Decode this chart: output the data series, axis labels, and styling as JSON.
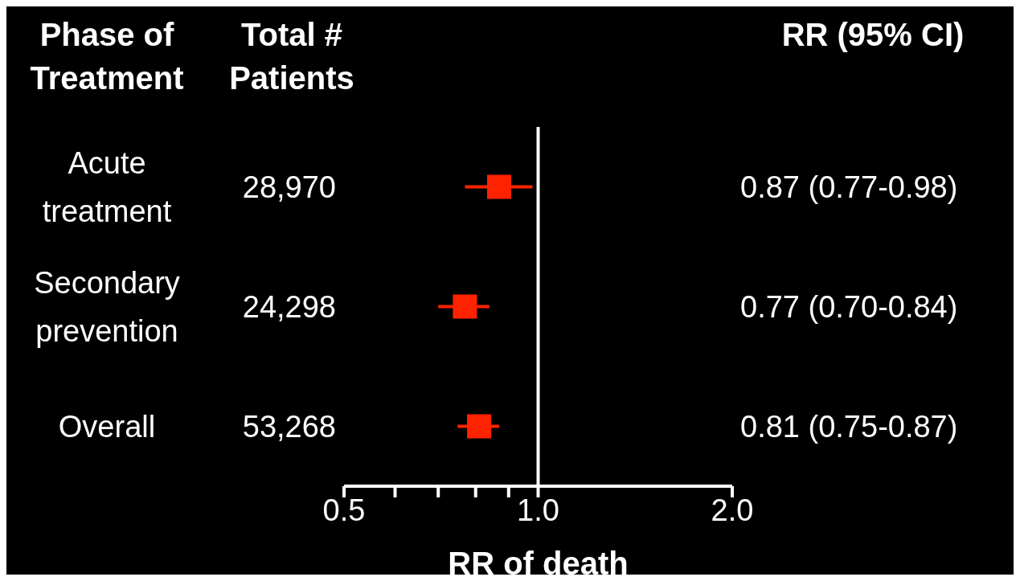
{
  "chart_data": {
    "type": "scatter",
    "orientation": "horizontal",
    "ylabel": "Phase of Treatment",
    "xlabel": "RR of death",
    "categories": [
      "Acute treatment",
      "Secondary prevention",
      "Overall"
    ],
    "series": [
      {
        "color": "#ff2200",
        "values": [
          0.87,
          0.77,
          0.81
        ],
        "errors": [
          [
            0.77,
            0.98
          ],
          [
            0.7,
            0.84
          ],
          [
            0.75,
            0.87
          ]
        ],
        "value_labels": [
          "0.87 (0.77-0.98)",
          "0.77 (0.70-0.84)",
          "0.81 (0.75-0.87)"
        ]
      }
    ],
    "annotations": [
      "Total # Patients",
      "RR (95% CI)",
      "28,970",
      "24,298",
      "53,268"
    ],
    "xlim": [
      0.5,
      2
    ],
    "xticks": [
      {
        "value": 0.5,
        "label": "0.5"
      },
      {
        "value": 0.6,
        "label": null
      },
      {
        "value": 0.7,
        "label": null
      },
      {
        "value": 0.8,
        "label": null
      },
      {
        "value": 0.9,
        "label": null
      },
      {
        "value": 1,
        "label": "1.0"
      },
      {
        "value": 2,
        "label": "2.0"
      }
    ],
    "log": "x",
    "marker": "square",
    "ref_lines": [
      {
        "axis": "x",
        "value": 1,
        "color": "#ffffff"
      }
    ]
  }
}
